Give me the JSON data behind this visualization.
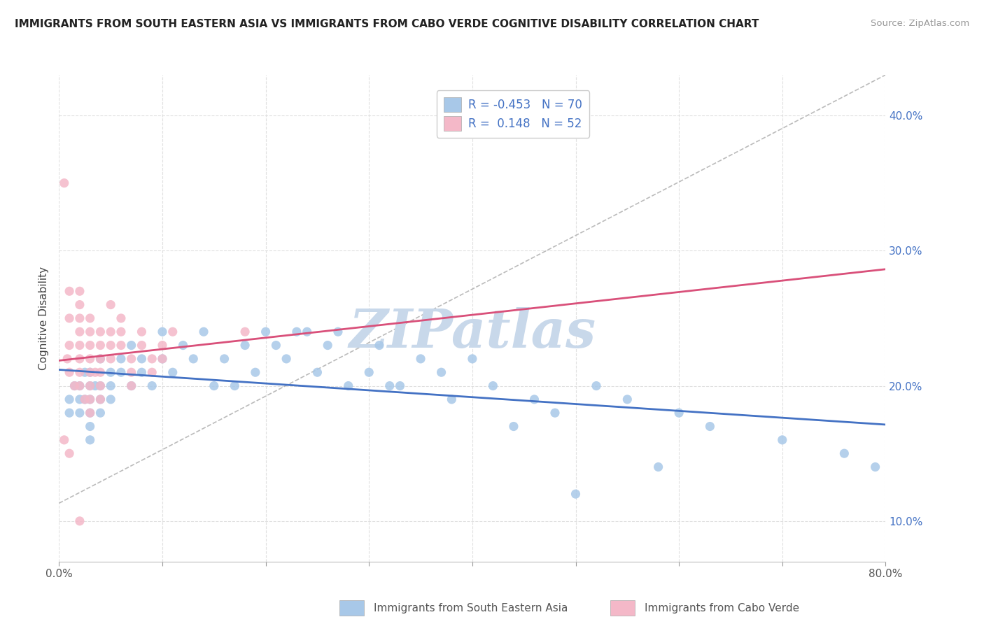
{
  "title": "IMMIGRANTS FROM SOUTH EASTERN ASIA VS IMMIGRANTS FROM CABO VERDE COGNITIVE DISABILITY CORRELATION CHART",
  "source": "Source: ZipAtlas.com",
  "ylabel": "Cognitive Disability",
  "xlim": [
    0.0,
    0.8
  ],
  "ylim": [
    0.07,
    0.43
  ],
  "xticks": [
    0.0,
    0.1,
    0.2,
    0.3,
    0.4,
    0.5,
    0.6,
    0.7,
    0.8
  ],
  "yticks": [
    0.1,
    0.2,
    0.3,
    0.4
  ],
  "xtick_labels": [
    "0.0%",
    "",
    "",
    "",
    "",
    "",
    "",
    "",
    "80.0%"
  ],
  "ytick_labels": [
    "10.0%",
    "20.0%",
    "30.0%",
    "40.0%"
  ],
  "blue_R": -0.453,
  "blue_N": 70,
  "pink_R": 0.148,
  "pink_N": 52,
  "blue_color": "#A8C8E8",
  "pink_color": "#F4B8C8",
  "blue_line_color": "#4472C4",
  "pink_line_color": "#D9507A",
  "watermark": "ZIPatlas",
  "watermark_color": "#C8D8EA",
  "legend_blue_label": "Immigrants from South Eastern Asia",
  "legend_pink_label": "Immigrants from Cabo Verde",
  "blue_scatter_x": [
    0.01,
    0.01,
    0.015,
    0.02,
    0.02,
    0.02,
    0.025,
    0.025,
    0.03,
    0.03,
    0.03,
    0.03,
    0.03,
    0.03,
    0.035,
    0.04,
    0.04,
    0.04,
    0.04,
    0.05,
    0.05,
    0.05,
    0.06,
    0.06,
    0.07,
    0.07,
    0.08,
    0.08,
    0.09,
    0.1,
    0.1,
    0.11,
    0.12,
    0.13,
    0.14,
    0.15,
    0.16,
    0.17,
    0.18,
    0.19,
    0.2,
    0.21,
    0.22,
    0.23,
    0.24,
    0.25,
    0.26,
    0.27,
    0.28,
    0.3,
    0.31,
    0.32,
    0.33,
    0.35,
    0.37,
    0.38,
    0.4,
    0.42,
    0.44,
    0.46,
    0.48,
    0.5,
    0.52,
    0.55,
    0.58,
    0.6,
    0.63,
    0.7,
    0.76,
    0.79
  ],
  "blue_scatter_y": [
    0.19,
    0.18,
    0.2,
    0.2,
    0.19,
    0.18,
    0.21,
    0.19,
    0.21,
    0.2,
    0.19,
    0.18,
    0.17,
    0.16,
    0.2,
    0.22,
    0.2,
    0.19,
    0.18,
    0.21,
    0.2,
    0.19,
    0.22,
    0.21,
    0.23,
    0.2,
    0.22,
    0.21,
    0.2,
    0.24,
    0.22,
    0.21,
    0.23,
    0.22,
    0.24,
    0.2,
    0.22,
    0.2,
    0.23,
    0.21,
    0.24,
    0.23,
    0.22,
    0.24,
    0.24,
    0.21,
    0.23,
    0.24,
    0.2,
    0.21,
    0.23,
    0.2,
    0.2,
    0.22,
    0.21,
    0.19,
    0.22,
    0.2,
    0.17,
    0.19,
    0.18,
    0.12,
    0.2,
    0.19,
    0.14,
    0.18,
    0.17,
    0.16,
    0.15,
    0.14
  ],
  "pink_scatter_x": [
    0.005,
    0.005,
    0.008,
    0.01,
    0.01,
    0.01,
    0.01,
    0.01,
    0.015,
    0.02,
    0.02,
    0.02,
    0.02,
    0.02,
    0.02,
    0.02,
    0.02,
    0.02,
    0.025,
    0.03,
    0.03,
    0.03,
    0.03,
    0.03,
    0.03,
    0.03,
    0.03,
    0.035,
    0.04,
    0.04,
    0.04,
    0.04,
    0.04,
    0.04,
    0.05,
    0.05,
    0.05,
    0.05,
    0.06,
    0.06,
    0.06,
    0.07,
    0.07,
    0.07,
    0.08,
    0.08,
    0.09,
    0.09,
    0.1,
    0.1,
    0.11,
    0.18
  ],
  "pink_scatter_y": [
    0.35,
    0.16,
    0.22,
    0.27,
    0.25,
    0.23,
    0.21,
    0.15,
    0.2,
    0.27,
    0.26,
    0.25,
    0.24,
    0.23,
    0.22,
    0.21,
    0.2,
    0.1,
    0.19,
    0.25,
    0.24,
    0.23,
    0.22,
    0.21,
    0.2,
    0.19,
    0.18,
    0.21,
    0.24,
    0.23,
    0.22,
    0.21,
    0.2,
    0.19,
    0.26,
    0.24,
    0.23,
    0.22,
    0.25,
    0.24,
    0.23,
    0.22,
    0.21,
    0.2,
    0.24,
    0.23,
    0.22,
    0.21,
    0.23,
    0.22,
    0.24,
    0.24
  ],
  "background_color": "#FFFFFF",
  "grid_color": "#DDDDDD"
}
